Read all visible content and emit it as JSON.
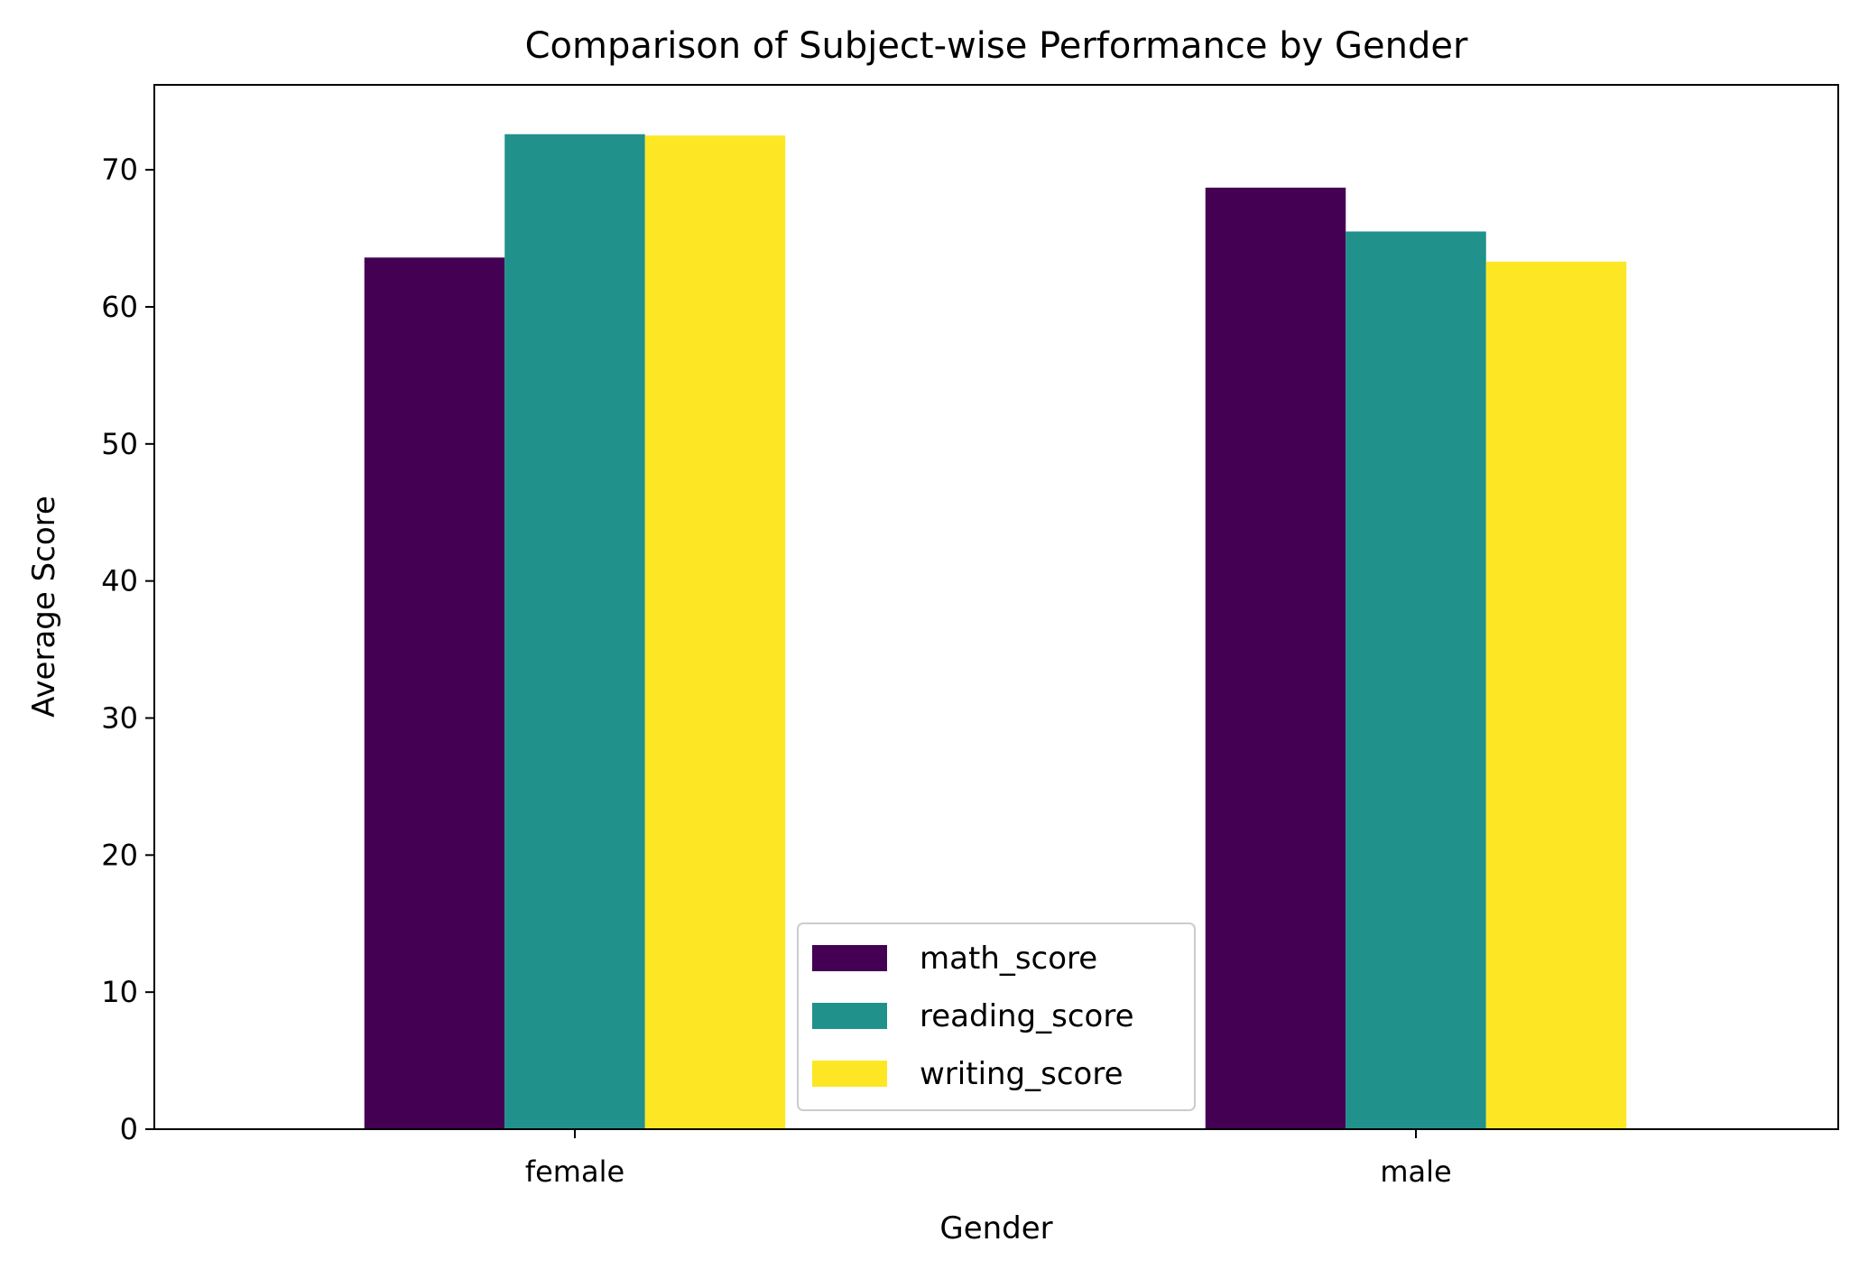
{
  "chart_data": {
    "type": "bar",
    "title": "Comparison of Subject-wise Performance by Gender",
    "xlabel": "Gender",
    "ylabel": "Average Score",
    "categories": [
      "female",
      "male"
    ],
    "series": [
      {
        "name": "math_score",
        "color": "#440154",
        "values": [
          63.6,
          68.7
        ]
      },
      {
        "name": "reading_score",
        "color": "#21918c",
        "values": [
          72.6,
          65.5
        ]
      },
      {
        "name": "writing_score",
        "color": "#fde725",
        "values": [
          72.5,
          63.3
        ]
      }
    ],
    "ylim": [
      0,
      76.2
    ],
    "yticks": [
      0,
      10,
      20,
      30,
      40,
      50,
      60,
      70
    ],
    "grid": false,
    "legend": "lower center"
  }
}
